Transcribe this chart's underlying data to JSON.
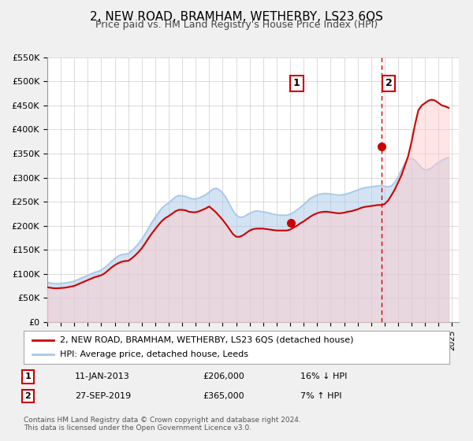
{
  "title": "2, NEW ROAD, BRAMHAM, WETHERBY, LS23 6QS",
  "subtitle": "Price paid vs. HM Land Registry's House Price Index (HPI)",
  "title_fontsize": 11,
  "subtitle_fontsize": 9,
  "ylabel": "",
  "xlim_start": 1995.0,
  "xlim_end": 2025.5,
  "ylim_bottom": 0,
  "ylim_top": 550000,
  "ytick_vals": [
    0,
    50000,
    100000,
    150000,
    200000,
    250000,
    300000,
    350000,
    400000,
    450000,
    500000,
    550000
  ],
  "ytick_labels": [
    "£0",
    "£50K",
    "£100K",
    "£150K",
    "£200K",
    "£250K",
    "£300K",
    "£350K",
    "£400K",
    "£450K",
    "£500K",
    "£550K"
  ],
  "xtick_vals": [
    1995,
    1996,
    1997,
    1998,
    1999,
    2000,
    2001,
    2002,
    2003,
    2004,
    2005,
    2006,
    2007,
    2008,
    2009,
    2010,
    2011,
    2012,
    2013,
    2014,
    2015,
    2016,
    2017,
    2018,
    2019,
    2020,
    2021,
    2022,
    2023,
    2024,
    2025
  ],
  "hpi_color": "#a8c8e8",
  "price_color": "#cc0000",
  "marker_color": "#cc0000",
  "vline_color": "#cc0000",
  "background_color": "#f0f0f0",
  "plot_bg_color": "#ffffff",
  "grid_color": "#cccccc",
  "legend_box_color": "#ffffff",
  "annotation1_box_color": "#ffffff",
  "annotation1_box_edge": "#cc0000",
  "point1_year": 2013.03,
  "point1_price": 206000,
  "point2_year": 2019.75,
  "point2_price": 365000,
  "vline_x": 2019.75,
  "hpi_x": [
    1995.0,
    1995.25,
    1995.5,
    1995.75,
    1996.0,
    1996.25,
    1996.5,
    1996.75,
    1997.0,
    1997.25,
    1997.5,
    1997.75,
    1998.0,
    1998.25,
    1998.5,
    1998.75,
    1999.0,
    1999.25,
    1999.5,
    1999.75,
    2000.0,
    2000.25,
    2000.5,
    2000.75,
    2001.0,
    2001.25,
    2001.5,
    2001.75,
    2002.0,
    2002.25,
    2002.5,
    2002.75,
    2003.0,
    2003.25,
    2003.5,
    2003.75,
    2004.0,
    2004.25,
    2004.5,
    2004.75,
    2005.0,
    2005.25,
    2005.5,
    2005.75,
    2006.0,
    2006.25,
    2006.5,
    2006.75,
    2007.0,
    2007.25,
    2007.5,
    2007.75,
    2008.0,
    2008.25,
    2008.5,
    2008.75,
    2009.0,
    2009.25,
    2009.5,
    2009.75,
    2010.0,
    2010.25,
    2010.5,
    2010.75,
    2011.0,
    2011.25,
    2011.5,
    2011.75,
    2012.0,
    2012.25,
    2012.5,
    2012.75,
    2013.0,
    2013.25,
    2013.5,
    2013.75,
    2014.0,
    2014.25,
    2014.5,
    2014.75,
    2015.0,
    2015.25,
    2015.5,
    2015.75,
    2016.0,
    2016.25,
    2016.5,
    2016.75,
    2017.0,
    2017.25,
    2017.5,
    2017.75,
    2018.0,
    2018.25,
    2018.5,
    2018.75,
    2019.0,
    2019.25,
    2019.5,
    2019.75,
    2020.0,
    2020.25,
    2020.5,
    2020.75,
    2021.0,
    2021.25,
    2021.5,
    2021.75,
    2022.0,
    2022.25,
    2022.5,
    2022.75,
    2023.0,
    2023.25,
    2023.5,
    2023.75,
    2024.0,
    2024.25,
    2024.5,
    2024.75
  ],
  "hpi_y": [
    82000,
    81000,
    80000,
    79500,
    80000,
    81000,
    82000,
    83000,
    85000,
    88000,
    91000,
    94000,
    97000,
    100000,
    103000,
    105000,
    108000,
    113000,
    119000,
    126000,
    132000,
    137000,
    140000,
    141000,
    142000,
    148000,
    155000,
    163000,
    172000,
    183000,
    195000,
    207000,
    218000,
    228000,
    237000,
    243000,
    248000,
    254000,
    260000,
    263000,
    262000,
    261000,
    258000,
    256000,
    256000,
    258000,
    261000,
    265000,
    270000,
    276000,
    278000,
    275000,
    268000,
    258000,
    245000,
    232000,
    222000,
    218000,
    218000,
    222000,
    226000,
    229000,
    231000,
    230000,
    229000,
    228000,
    226000,
    224000,
    223000,
    222000,
    222000,
    222000,
    224000,
    228000,
    233000,
    238000,
    244000,
    251000,
    257000,
    261000,
    264000,
    266000,
    267000,
    267000,
    266000,
    265000,
    264000,
    264000,
    265000,
    267000,
    269000,
    272000,
    274000,
    277000,
    279000,
    280000,
    281000,
    282000,
    283000,
    283000,
    282000,
    281000,
    283000,
    290000,
    302000,
    316000,
    330000,
    338000,
    340000,
    336000,
    328000,
    320000,
    316000,
    317000,
    321000,
    327000,
    332000,
    336000,
    340000,
    342000
  ],
  "price_x": [
    1995.0,
    1995.25,
    1995.5,
    1995.75,
    1996.0,
    1996.25,
    1996.5,
    1996.75,
    1997.0,
    1997.25,
    1997.5,
    1997.75,
    1998.0,
    1998.25,
    1998.5,
    1998.75,
    1999.0,
    1999.25,
    1999.5,
    1999.75,
    2000.0,
    2000.25,
    2000.5,
    2000.75,
    2001.0,
    2001.25,
    2001.5,
    2001.75,
    2002.0,
    2002.25,
    2002.5,
    2002.75,
    2003.0,
    2003.25,
    2003.5,
    2003.75,
    2004.0,
    2004.25,
    2004.5,
    2004.75,
    2005.0,
    2005.25,
    2005.5,
    2005.75,
    2006.0,
    2006.25,
    2006.5,
    2006.75,
    2007.0,
    2007.25,
    2007.5,
    2007.75,
    2008.0,
    2008.25,
    2008.5,
    2008.75,
    2009.0,
    2009.25,
    2009.5,
    2009.75,
    2010.0,
    2010.25,
    2010.5,
    2010.75,
    2011.0,
    2011.25,
    2011.5,
    2011.75,
    2012.0,
    2012.25,
    2012.5,
    2012.75,
    2013.0,
    2013.25,
    2013.5,
    2013.75,
    2014.0,
    2014.25,
    2014.5,
    2014.75,
    2015.0,
    2015.25,
    2015.5,
    2015.75,
    2016.0,
    2016.25,
    2016.5,
    2016.75,
    2017.0,
    2017.25,
    2017.5,
    2017.75,
    2018.0,
    2018.25,
    2018.5,
    2018.75,
    2019.0,
    2019.25,
    2019.5,
    2019.75,
    2020.0,
    2020.25,
    2020.5,
    2020.75,
    2021.0,
    2021.25,
    2021.5,
    2021.75,
    2022.0,
    2022.25,
    2022.5,
    2022.75,
    2023.0,
    2023.25,
    2023.5,
    2023.75,
    2024.0,
    2024.25,
    2024.5,
    2024.75
  ],
  "price_y": [
    72000,
    71000,
    70000,
    70000,
    70500,
    71000,
    72000,
    73500,
    75000,
    78000,
    81000,
    84000,
    87000,
    90000,
    93000,
    95000,
    97000,
    101000,
    107000,
    113000,
    118000,
    122000,
    125000,
    126500,
    127000,
    132000,
    138000,
    145000,
    153000,
    163000,
    174000,
    184000,
    193000,
    202000,
    210000,
    216000,
    220000,
    225000,
    230000,
    233000,
    233000,
    232000,
    229000,
    228000,
    228000,
    230000,
    233000,
    236000,
    240000,
    234000,
    228000,
    220000,
    212000,
    203000,
    193000,
    183000,
    177000,
    177000,
    180000,
    185000,
    190000,
    193000,
    194000,
    194000,
    194000,
    193000,
    192000,
    191000,
    190000,
    190000,
    190000,
    190000,
    192000,
    196000,
    200000,
    205000,
    209000,
    214000,
    219000,
    223000,
    226000,
    228000,
    229000,
    229000,
    228000,
    227000,
    226000,
    226000,
    227000,
    229000,
    230000,
    232000,
    234000,
    237000,
    239000,
    240000,
    241000,
    242000,
    243000,
    243000,
    245000,
    252000,
    263000,
    275000,
    290000,
    305000,
    325000,
    345000,
    375000,
    410000,
    440000,
    450000,
    455000,
    460000,
    462000,
    460000,
    455000,
    450000,
    448000,
    445000
  ],
  "legend_label_red": "2, NEW ROAD, BRAMHAM, WETHERBY, LS23 6QS (detached house)",
  "legend_label_blue": "HPI: Average price, detached house, Leeds",
  "ann1_label": "1",
  "ann1_date": "11-JAN-2013",
  "ann1_price": "£206,000",
  "ann1_change": "16% ↓ HPI",
  "ann2_label": "2",
  "ann2_date": "27-SEP-2019",
  "ann2_price": "£365,000",
  "ann2_change": "7% ↑ HPI",
  "footer1": "Contains HM Land Registry data © Crown copyright and database right 2024.",
  "footer2": "This data is licensed under the Open Government Licence v3.0."
}
